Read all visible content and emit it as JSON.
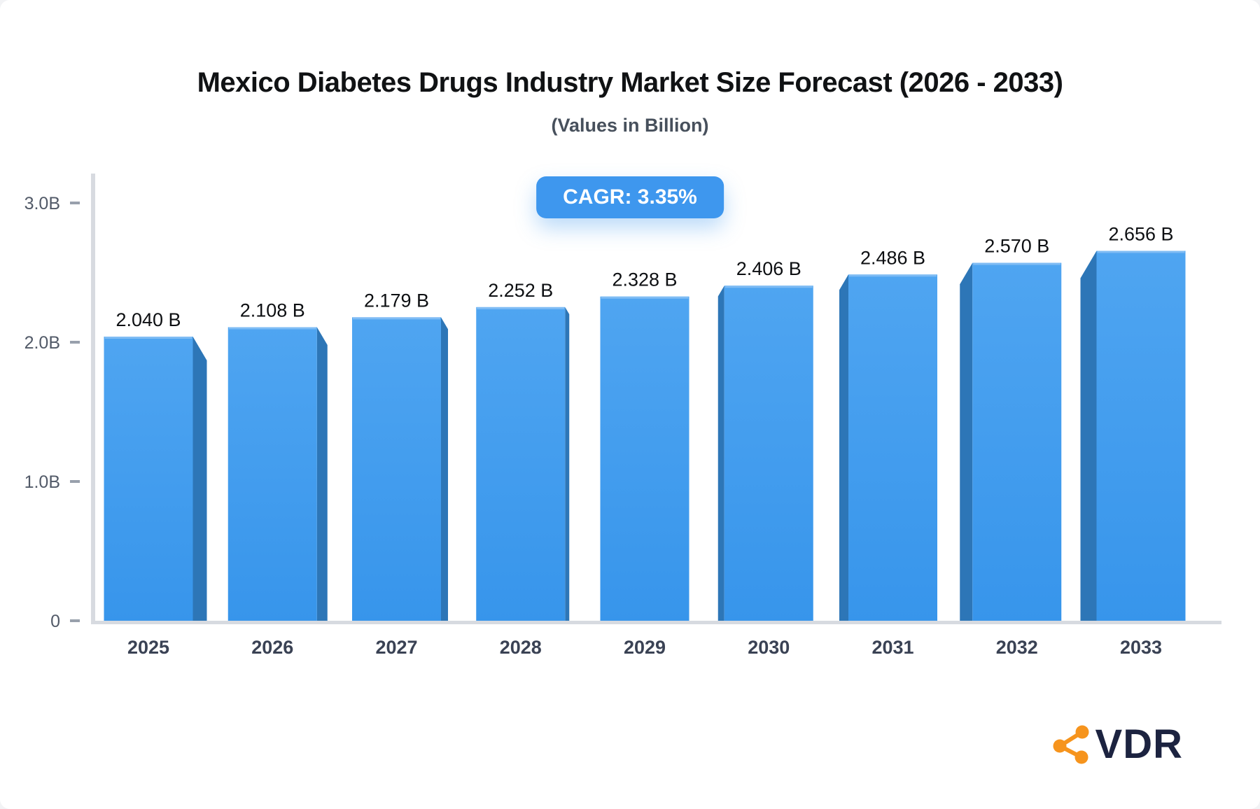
{
  "chart_data": {
    "type": "bar",
    "title": "Mexico Diabetes Drugs Industry Market Size Forecast (2026 - 2033)",
    "subtitle": "(Values in Billion)",
    "badge": "CAGR: 3.35%",
    "categories": [
      "2025",
      "2026",
      "2027",
      "2028",
      "2029",
      "2030",
      "2031",
      "2032",
      "2033"
    ],
    "values": [
      2.04,
      2.108,
      2.179,
      2.252,
      2.328,
      2.406,
      2.486,
      2.57,
      2.656
    ],
    "value_labels": [
      "2.040 B",
      "2.108 B",
      "2.179 B",
      "2.252 B",
      "2.328 B",
      "2.406 B",
      "2.486 B",
      "2.570 B",
      "2.656 B"
    ],
    "xlabel": "",
    "ylabel": "",
    "ylim": [
      0,
      3.0
    ],
    "yticks": [
      {
        "v": 0,
        "label": "0"
      },
      {
        "v": 1,
        "label": "1.0B"
      },
      {
        "v": 2,
        "label": "2.0B"
      },
      {
        "v": 3,
        "label": "3.0B"
      }
    ],
    "grid": false,
    "legend": "none",
    "bar_style": "pseudo-3d, side bevel faces away from center bar",
    "colors": {
      "bar_face_top": "#4FA5F1",
      "bar_face_bottom": "#3795EB",
      "bar_side": "#2D76B7",
      "bar_top_highlight": "#7FBCF4",
      "axis_line": "#D7DAE0",
      "tick_dash": "#98A0AC",
      "y_label": "#525A68",
      "x_label": "#3A4254",
      "value_label": "#0D0F12",
      "title": "#101214",
      "subtitle": "#47505C",
      "badge_bg": "#3E97EE",
      "badge_text": "#FFFFFF",
      "brand_text": "#1C2340",
      "brand_icon": "#F6941D"
    }
  },
  "brand": {
    "name": "VDR"
  }
}
